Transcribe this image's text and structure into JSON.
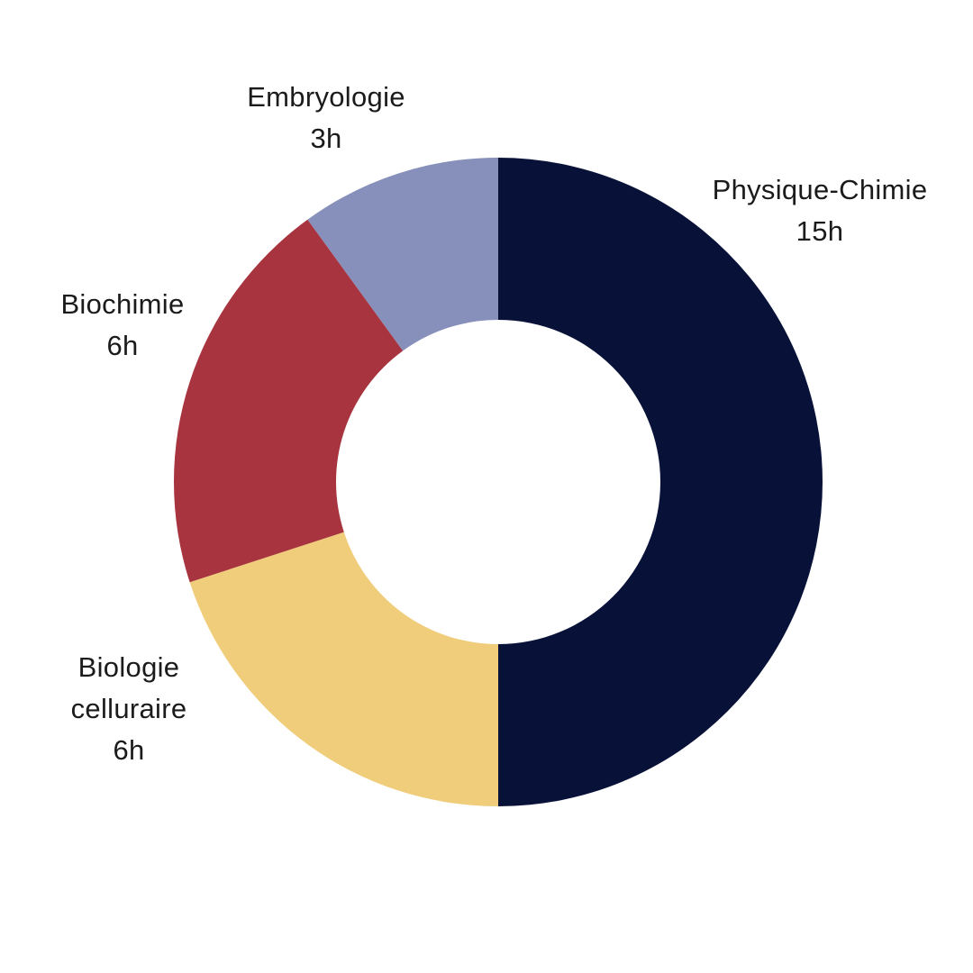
{
  "chart_data": {
    "type": "pie",
    "donut": true,
    "unit": "h",
    "legend": "none",
    "categories": [
      "Physique-Chimie",
      "Biologie cellulaire",
      "Biochimie",
      "Embryologie"
    ],
    "values": [
      15,
      6,
      6,
      3
    ],
    "value_labels": [
      "15h",
      "6h",
      "6h",
      "3h"
    ],
    "label_lines": [
      [
        "Physique-Chimie"
      ],
      [
        "Biologie",
        "celluraire"
      ],
      [
        "Biochimie"
      ],
      [
        "Embryologie"
      ]
    ],
    "colors": [
      "#081238",
      "#efcd7a",
      "#a7343f",
      "#8790bb"
    ]
  }
}
